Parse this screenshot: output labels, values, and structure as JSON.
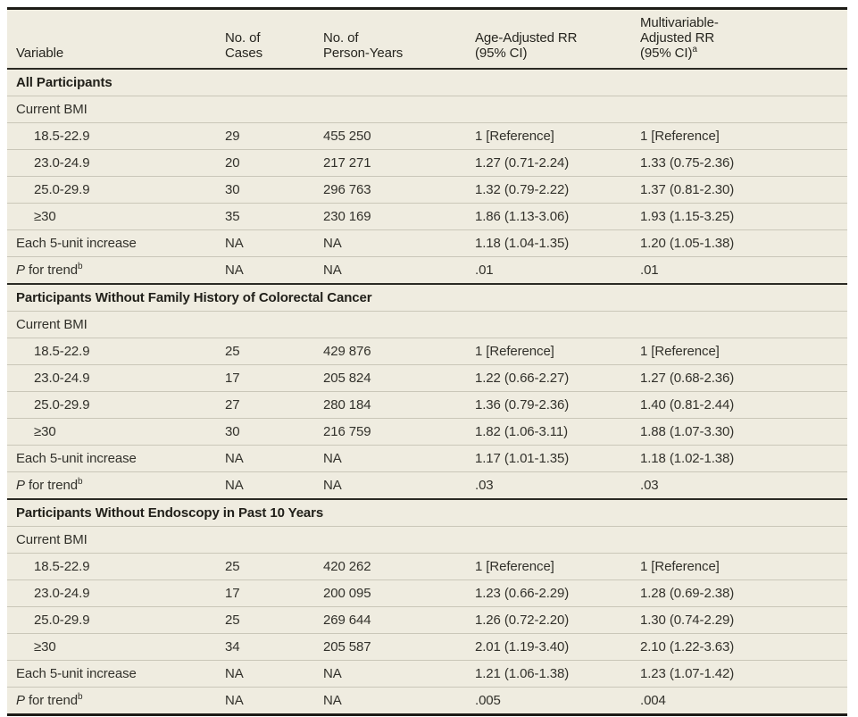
{
  "colors": {
    "table_background": "#efece0",
    "row_separator": "#cac7b9",
    "section_rule": "#2b2a24",
    "outer_rule": "#1d1c17",
    "text": "#32312b"
  },
  "table": {
    "columns": [
      {
        "label": "Variable",
        "sup": ""
      },
      {
        "label": "No. of\nCases",
        "sup": ""
      },
      {
        "label": "No. of\nPerson-Years",
        "sup": ""
      },
      {
        "label": "Age-Adjusted RR\n(95% CI)",
        "sup": ""
      },
      {
        "label": "Multivariable-\nAdjusted RR\n(95% CI)",
        "sup": "a"
      }
    ],
    "sections": [
      {
        "title": "All Participants",
        "rows": [
          {
            "indent": 0,
            "label": "Current BMI",
            "cells": [
              "",
              "",
              "",
              ""
            ]
          },
          {
            "indent": 1,
            "label": "18.5-22.9",
            "cells": [
              "29",
              "455 250",
              "1 [Reference]",
              "1 [Reference]"
            ]
          },
          {
            "indent": 1,
            "label": "23.0-24.9",
            "cells": [
              "20",
              "217 271",
              "1.27 (0.71-2.24)",
              "1.33 (0.75-2.36)"
            ]
          },
          {
            "indent": 1,
            "label": "25.0-29.9",
            "cells": [
              "30",
              "296 763",
              "1.32 (0.79-2.22)",
              "1.37 (0.81-2.30)"
            ]
          },
          {
            "indent": 1,
            "label": "≥30",
            "cells": [
              "35",
              "230 169",
              "1.86 (1.13-3.06)",
              "1.93 (1.15-3.25)"
            ]
          },
          {
            "indent": 0,
            "label": "Each 5-unit increase",
            "cells": [
              "NA",
              "NA",
              "1.18 (1.04-1.35)",
              "1.20 (1.05-1.38)"
            ]
          },
          {
            "indent": 0,
            "italic": "P",
            "label": " for trend",
            "sup": "b",
            "cells": [
              "NA",
              "NA",
              ".01",
              ".01"
            ]
          }
        ]
      },
      {
        "title": "Participants Without Family History of Colorectal Cancer",
        "rows": [
          {
            "indent": 0,
            "label": "Current BMI",
            "cells": [
              "",
              "",
              "",
              ""
            ]
          },
          {
            "indent": 1,
            "label": "18.5-22.9",
            "cells": [
              "25",
              "429 876",
              "1 [Reference]",
              "1 [Reference]"
            ]
          },
          {
            "indent": 1,
            "label": "23.0-24.9",
            "cells": [
              "17",
              "205 824",
              "1.22 (0.66-2.27)",
              "1.27 (0.68-2.36)"
            ]
          },
          {
            "indent": 1,
            "label": "25.0-29.9",
            "cells": [
              "27",
              "280 184",
              "1.36 (0.79-2.36)",
              "1.40 (0.81-2.44)"
            ]
          },
          {
            "indent": 1,
            "label": "≥30",
            "cells": [
              "30",
              "216 759",
              "1.82 (1.06-3.11)",
              "1.88 (1.07-3.30)"
            ]
          },
          {
            "indent": 0,
            "label": "Each 5-unit increase",
            "cells": [
              "NA",
              "NA",
              "1.17 (1.01-1.35)",
              "1.18 (1.02-1.38)"
            ]
          },
          {
            "indent": 0,
            "italic": "P",
            "label": " for trend",
            "sup": "b",
            "cells": [
              "NA",
              "NA",
              ".03",
              ".03"
            ]
          }
        ]
      },
      {
        "title": "Participants Without Endoscopy in Past 10 Years",
        "rows": [
          {
            "indent": 0,
            "label": "Current BMI",
            "cells": [
              "",
              "",
              "",
              ""
            ]
          },
          {
            "indent": 1,
            "label": "18.5-22.9",
            "cells": [
              "25",
              "420 262",
              "1 [Reference]",
              "1 [Reference]"
            ]
          },
          {
            "indent": 1,
            "label": "23.0-24.9",
            "cells": [
              "17",
              "200 095",
              "1.23 (0.66-2.29)",
              "1.28 (0.69-2.38)"
            ]
          },
          {
            "indent": 1,
            "label": "25.0-29.9",
            "cells": [
              "25",
              "269 644",
              "1.26 (0.72-2.20)",
              "1.30 (0.74-2.29)"
            ]
          },
          {
            "indent": 1,
            "label": "≥30",
            "cells": [
              "34",
              "205 587",
              "2.01 (1.19-3.40)",
              "2.10 (1.22-3.63)"
            ]
          },
          {
            "indent": 0,
            "label": "Each 5-unit increase",
            "cells": [
              "NA",
              "NA",
              "1.21 (1.06-1.38)",
              "1.23 (1.07-1.42)"
            ]
          },
          {
            "indent": 0,
            "italic": "P",
            "label": " for trend",
            "sup": "b",
            "cells": [
              "NA",
              "NA",
              ".005",
              ".004"
            ]
          }
        ]
      }
    ]
  }
}
